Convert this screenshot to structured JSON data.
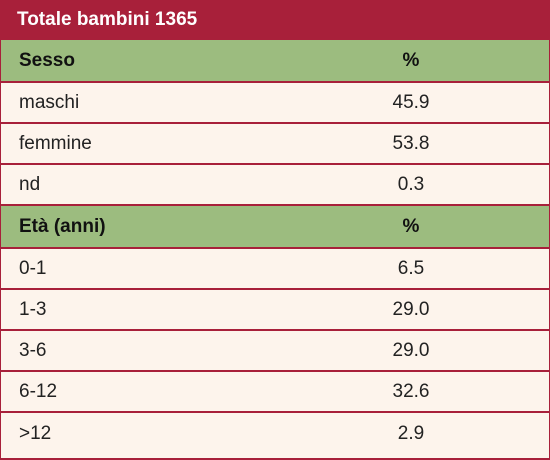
{
  "title": "Totale bambini 1365",
  "sections": [
    {
      "header_label": "Sesso",
      "header_value": "%",
      "rows": [
        {
          "label": "maschi",
          "value": "45.9"
        },
        {
          "label": "femmine",
          "value": "53.8"
        },
        {
          "label": "nd",
          "value": "0.3"
        }
      ]
    },
    {
      "header_label": "Età (anni)",
      "header_value": "%",
      "rows": [
        {
          "label": "0-1",
          "value": "6.5"
        },
        {
          "label": "1-3",
          "value": "29.0"
        },
        {
          "label": "3-6",
          "value": "29.0"
        },
        {
          "label": "6-12",
          "value": "32.6"
        },
        {
          "label": ">12",
          "value": "2.9"
        }
      ]
    }
  ],
  "colors": {
    "title_background": "#a8203a",
    "section_header_background": "#9cbc7f",
    "row_background": "#fdf4ec",
    "divider": "#a8203a"
  }
}
